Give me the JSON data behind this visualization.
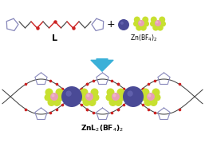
{
  "background_color": "#ffffff",
  "arrow_color": "#3ab0d8",
  "label_L": "L",
  "label_reagent": "Zn(BF$_4$)$_2$",
  "label_product": "ZnL$_2$(BF$_4$)$_2$",
  "label_plus": "+",
  "zn_color": "#4a4a96",
  "zn_highlight": "#7070bb",
  "bf4_yellow": "#c8e030",
  "bf4_pink": "#e8a0b8",
  "tri_color": "#8888bb",
  "chain_color": "#444444",
  "oxy_color": "#cc2222"
}
